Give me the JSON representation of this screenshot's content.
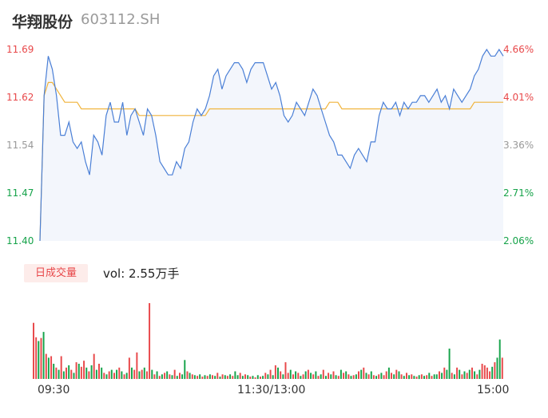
{
  "header": {
    "name": "华翔股份",
    "code": "603112.SH"
  },
  "colors": {
    "up": "#e8484a",
    "down": "#16a34a",
    "neutral": "#999999",
    "price_line": "#4a7fd6",
    "avg_line": "#f0b43c",
    "area_fill": "#f3f6fc"
  },
  "volume_panel": {
    "badge": "日成交量",
    "vol_text": "vol: 2.55万手"
  },
  "chart_data": {
    "type": "line",
    "y_axis_left": {
      "min": 11.4,
      "max": 11.69,
      "ticks": [
        {
          "label": "11.69",
          "tone": "up"
        },
        {
          "label": "11.62",
          "tone": "up"
        },
        {
          "label": "11.54",
          "tone": "neutral"
        },
        {
          "label": "11.47",
          "tone": "down"
        },
        {
          "label": "11.40",
          "tone": "down"
        }
      ]
    },
    "y_axis_right": {
      "ticks": [
        {
          "label": "4.66%",
          "tone": "up"
        },
        {
          "label": "4.01%",
          "tone": "up"
        },
        {
          "label": "3.36%",
          "tone": "neutral"
        },
        {
          "label": "2.71%",
          "tone": "down"
        },
        {
          "label": "2.06%",
          "tone": "down"
        }
      ]
    },
    "x_axis": {
      "ticks": [
        "09:30",
        "11:30/13:00",
        "15:00"
      ]
    },
    "price": [
      [
        0,
        11.4
      ],
      [
        1,
        11.62
      ],
      [
        2,
        11.68
      ],
      [
        3,
        11.66
      ],
      [
        4,
        11.62
      ],
      [
        5,
        11.56
      ],
      [
        6,
        11.56
      ],
      [
        7,
        11.58
      ],
      [
        8,
        11.55
      ],
      [
        9,
        11.54
      ],
      [
        10,
        11.55
      ],
      [
        11,
        11.52
      ],
      [
        12,
        11.5
      ],
      [
        13,
        11.56
      ],
      [
        14,
        11.55
      ],
      [
        15,
        11.53
      ],
      [
        16,
        11.59
      ],
      [
        17,
        11.61
      ],
      [
        18,
        11.58
      ],
      [
        19,
        11.58
      ],
      [
        20,
        11.61
      ],
      [
        21,
        11.56
      ],
      [
        22,
        11.59
      ],
      [
        23,
        11.6
      ],
      [
        24,
        11.58
      ],
      [
        25,
        11.56
      ],
      [
        26,
        11.6
      ],
      [
        27,
        11.59
      ],
      [
        28,
        11.56
      ],
      [
        29,
        11.52
      ],
      [
        30,
        11.51
      ],
      [
        31,
        11.5
      ],
      [
        32,
        11.5
      ],
      [
        33,
        11.52
      ],
      [
        34,
        11.51
      ],
      [
        35,
        11.54
      ],
      [
        36,
        11.55
      ],
      [
        37,
        11.58
      ],
      [
        38,
        11.6
      ],
      [
        39,
        11.59
      ],
      [
        40,
        11.6
      ],
      [
        41,
        11.62
      ],
      [
        42,
        11.65
      ],
      [
        43,
        11.66
      ],
      [
        44,
        11.63
      ],
      [
        45,
        11.65
      ],
      [
        46,
        11.66
      ],
      [
        47,
        11.67
      ],
      [
        48,
        11.67
      ],
      [
        49,
        11.66
      ],
      [
        50,
        11.64
      ],
      [
        51,
        11.66
      ],
      [
        52,
        11.67
      ],
      [
        53,
        11.67
      ],
      [
        54,
        11.67
      ],
      [
        55,
        11.65
      ],
      [
        56,
        11.63
      ],
      [
        57,
        11.64
      ],
      [
        58,
        11.62
      ],
      [
        59,
        11.59
      ],
      [
        60,
        11.58
      ],
      [
        61,
        11.59
      ],
      [
        62,
        11.61
      ],
      [
        63,
        11.6
      ],
      [
        64,
        11.59
      ],
      [
        65,
        11.61
      ],
      [
        66,
        11.63
      ],
      [
        67,
        11.62
      ],
      [
        68,
        11.6
      ],
      [
        69,
        11.58
      ],
      [
        70,
        11.56
      ],
      [
        71,
        11.55
      ],
      [
        72,
        11.53
      ],
      [
        73,
        11.53
      ],
      [
        74,
        11.52
      ],
      [
        75,
        11.51
      ],
      [
        76,
        11.53
      ],
      [
        77,
        11.54
      ],
      [
        78,
        11.53
      ],
      [
        79,
        11.52
      ],
      [
        80,
        11.55
      ],
      [
        81,
        11.55
      ],
      [
        82,
        11.59
      ],
      [
        83,
        11.61
      ],
      [
        84,
        11.6
      ],
      [
        85,
        11.6
      ],
      [
        86,
        11.61
      ],
      [
        87,
        11.59
      ],
      [
        88,
        11.61
      ],
      [
        89,
        11.6
      ],
      [
        90,
        11.61
      ],
      [
        91,
        11.61
      ],
      [
        92,
        11.62
      ],
      [
        93,
        11.62
      ],
      [
        94,
        11.61
      ],
      [
        95,
        11.62
      ],
      [
        96,
        11.63
      ],
      [
        97,
        11.61
      ],
      [
        98,
        11.62
      ],
      [
        99,
        11.6
      ],
      [
        100,
        11.63
      ],
      [
        101,
        11.62
      ],
      [
        102,
        11.61
      ],
      [
        103,
        11.62
      ],
      [
        104,
        11.63
      ],
      [
        105,
        11.65
      ],
      [
        106,
        11.66
      ],
      [
        107,
        11.68
      ],
      [
        108,
        11.69
      ],
      [
        109,
        11.68
      ],
      [
        110,
        11.68
      ],
      [
        111,
        11.69
      ],
      [
        112,
        11.68
      ]
    ],
    "avg_price": [
      [
        0,
        11.4
      ],
      [
        1,
        11.62
      ],
      [
        2,
        11.64
      ],
      [
        3,
        11.64
      ],
      [
        4,
        11.63
      ],
      [
        5,
        11.62
      ],
      [
        6,
        11.61
      ],
      [
        7,
        11.61
      ],
      [
        8,
        11.61
      ],
      [
        9,
        11.61
      ],
      [
        10,
        11.6
      ],
      [
        11,
        11.6
      ],
      [
        12,
        11.6
      ],
      [
        13,
        11.6
      ],
      [
        14,
        11.6
      ],
      [
        15,
        11.6
      ],
      [
        16,
        11.6
      ],
      [
        17,
        11.6
      ],
      [
        18,
        11.6
      ],
      [
        19,
        11.6
      ],
      [
        20,
        11.6
      ],
      [
        21,
        11.6
      ],
      [
        22,
        11.6
      ],
      [
        23,
        11.6
      ],
      [
        24,
        11.59
      ],
      [
        25,
        11.59
      ],
      [
        26,
        11.59
      ],
      [
        27,
        11.59
      ],
      [
        28,
        11.59
      ],
      [
        29,
        11.59
      ],
      [
        30,
        11.59
      ],
      [
        31,
        11.59
      ],
      [
        32,
        11.59
      ],
      [
        33,
        11.59
      ],
      [
        34,
        11.59
      ],
      [
        35,
        11.59
      ],
      [
        36,
        11.59
      ],
      [
        37,
        11.59
      ],
      [
        38,
        11.59
      ],
      [
        39,
        11.59
      ],
      [
        40,
        11.59
      ],
      [
        41,
        11.6
      ],
      [
        42,
        11.6
      ],
      [
        43,
        11.6
      ],
      [
        44,
        11.6
      ],
      [
        45,
        11.6
      ],
      [
        46,
        11.6
      ],
      [
        47,
        11.6
      ],
      [
        48,
        11.6
      ],
      [
        49,
        11.6
      ],
      [
        50,
        11.6
      ],
      [
        51,
        11.6
      ],
      [
        52,
        11.6
      ],
      [
        53,
        11.6
      ],
      [
        54,
        11.6
      ],
      [
        55,
        11.6
      ],
      [
        56,
        11.6
      ],
      [
        57,
        11.6
      ],
      [
        58,
        11.6
      ],
      [
        59,
        11.6
      ],
      [
        60,
        11.6
      ],
      [
        61,
        11.6
      ],
      [
        62,
        11.6
      ],
      [
        63,
        11.6
      ],
      [
        64,
        11.6
      ],
      [
        65,
        11.6
      ],
      [
        66,
        11.6
      ],
      [
        67,
        11.6
      ],
      [
        68,
        11.6
      ],
      [
        69,
        11.6
      ],
      [
        70,
        11.61
      ],
      [
        71,
        11.61
      ],
      [
        72,
        11.61
      ],
      [
        73,
        11.6
      ],
      [
        74,
        11.6
      ],
      [
        75,
        11.6
      ],
      [
        76,
        11.6
      ],
      [
        77,
        11.6
      ],
      [
        78,
        11.6
      ],
      [
        79,
        11.6
      ],
      [
        80,
        11.6
      ],
      [
        81,
        11.6
      ],
      [
        82,
        11.6
      ],
      [
        83,
        11.6
      ],
      [
        84,
        11.6
      ],
      [
        85,
        11.6
      ],
      [
        86,
        11.6
      ],
      [
        87,
        11.6
      ],
      [
        88,
        11.6
      ],
      [
        89,
        11.6
      ],
      [
        90,
        11.6
      ],
      [
        91,
        11.6
      ],
      [
        92,
        11.6
      ],
      [
        93,
        11.6
      ],
      [
        94,
        11.6
      ],
      [
        95,
        11.6
      ],
      [
        96,
        11.6
      ],
      [
        97,
        11.6
      ],
      [
        98,
        11.6
      ],
      [
        99,
        11.6
      ],
      [
        100,
        11.6
      ],
      [
        101,
        11.6
      ],
      [
        102,
        11.6
      ],
      [
        103,
        11.6
      ],
      [
        104,
        11.6
      ],
      [
        105,
        11.61
      ],
      [
        106,
        11.61
      ],
      [
        107,
        11.61
      ],
      [
        108,
        11.61
      ],
      [
        109,
        11.61
      ],
      [
        110,
        11.61
      ],
      [
        111,
        11.61
      ],
      [
        112,
        11.61
      ]
    ],
    "volume_relative": [
      0.74,
      0.55,
      0.5,
      0.54,
      0.62,
      0.33,
      0.28,
      0.3,
      0.2,
      0.15,
      0.12,
      0.3,
      0.1,
      0.15,
      0.18,
      0.12,
      0.08,
      0.22,
      0.2,
      0.16,
      0.24,
      0.15,
      0.1,
      0.18,
      0.33,
      0.12,
      0.2,
      0.15,
      0.08,
      0.06,
      0.1,
      0.12,
      0.08,
      0.12,
      0.15,
      0.1,
      0.06,
      0.08,
      0.28,
      0.15,
      0.12,
      0.35,
      0.1,
      0.12,
      0.15,
      0.1,
      1.0,
      0.12,
      0.06,
      0.1,
      0.04,
      0.06,
      0.08,
      0.1,
      0.06,
      0.05,
      0.12,
      0.04,
      0.08,
      0.06,
      0.25,
      0.1,
      0.08,
      0.06,
      0.05,
      0.04,
      0.06,
      0.03,
      0.05,
      0.04,
      0.06,
      0.05,
      0.04,
      0.08,
      0.03,
      0.06,
      0.05,
      0.04,
      0.06,
      0.04,
      0.1,
      0.05,
      0.08,
      0.04,
      0.06,
      0.05,
      0.03,
      0.04,
      0.02,
      0.05,
      0.03,
      0.04,
      0.08,
      0.06,
      0.12,
      0.05,
      0.18,
      0.15,
      0.1,
      0.06,
      0.22,
      0.08,
      0.12,
      0.06,
      0.1,
      0.08,
      0.04,
      0.06,
      0.1,
      0.12,
      0.08,
      0.06,
      0.1,
      0.04,
      0.06,
      0.12,
      0.04,
      0.08,
      0.06,
      0.1,
      0.05,
      0.04,
      0.12,
      0.08,
      0.1,
      0.06,
      0.04,
      0.05,
      0.06,
      0.1,
      0.12,
      0.15,
      0.08,
      0.06,
      0.1,
      0.05,
      0.04,
      0.06,
      0.08,
      0.05,
      0.1,
      0.15,
      0.08,
      0.06,
      0.12,
      0.1,
      0.06,
      0.04,
      0.08,
      0.05,
      0.06,
      0.04,
      0.03,
      0.05,
      0.06,
      0.04,
      0.05,
      0.08,
      0.04,
      0.06,
      0.06,
      0.1,
      0.08,
      0.15,
      0.12,
      0.4,
      0.08,
      0.06,
      0.15,
      0.12,
      0.06,
      0.1,
      0.08,
      0.12,
      0.15,
      0.1,
      0.06,
      0.12,
      0.2,
      0.18,
      0.15,
      0.1,
      0.16,
      0.22,
      0.28,
      0.52,
      0.28
    ],
    "volume_colors": [
      "up",
      "up",
      "down",
      "up",
      "down",
      "up",
      "down",
      "up",
      "down",
      "up",
      "down",
      "up",
      "down",
      "up",
      "down",
      "up",
      "down",
      "up",
      "down",
      "up",
      "up",
      "down",
      "up",
      "down",
      "up",
      "down",
      "up",
      "down",
      "up",
      "down",
      "up",
      "down",
      "up",
      "down",
      "up",
      "down",
      "up",
      "down",
      "up",
      "down",
      "up",
      "up",
      "down",
      "up",
      "down",
      "up",
      "up",
      "down",
      "up",
      "down",
      "up",
      "down",
      "up",
      "down",
      "up",
      "down",
      "up",
      "down",
      "up",
      "down",
      "down",
      "up",
      "down",
      "up",
      "down",
      "up",
      "down",
      "up",
      "down",
      "up",
      "down",
      "up",
      "down",
      "up",
      "down",
      "up",
      "down",
      "up",
      "down",
      "up",
      "down",
      "down",
      "up",
      "down",
      "up",
      "down",
      "up",
      "down",
      "up",
      "down",
      "up",
      "down",
      "up",
      "down",
      "up",
      "down",
      "up",
      "down",
      "up",
      "down",
      "up",
      "up",
      "down",
      "up",
      "down",
      "up",
      "down",
      "up",
      "down",
      "up",
      "down",
      "up",
      "down",
      "up",
      "down",
      "up",
      "down",
      "up",
      "down",
      "up",
      "down",
      "up",
      "down",
      "up",
      "down",
      "up",
      "down",
      "up",
      "down",
      "up",
      "down",
      "up",
      "down",
      "up",
      "down",
      "up",
      "down",
      "up",
      "down",
      "up",
      "up",
      "down",
      "up",
      "down",
      "up",
      "down",
      "up",
      "down",
      "up",
      "down",
      "up",
      "down",
      "up",
      "down",
      "up",
      "down",
      "up",
      "down",
      "up",
      "down",
      "down",
      "up",
      "down",
      "up",
      "down",
      "down",
      "up",
      "down",
      "up",
      "down",
      "up",
      "down",
      "up",
      "down",
      "up",
      "down",
      "up",
      "down",
      "up",
      "up",
      "up",
      "up",
      "down",
      "up",
      "down",
      "down",
      "up"
    ]
  }
}
